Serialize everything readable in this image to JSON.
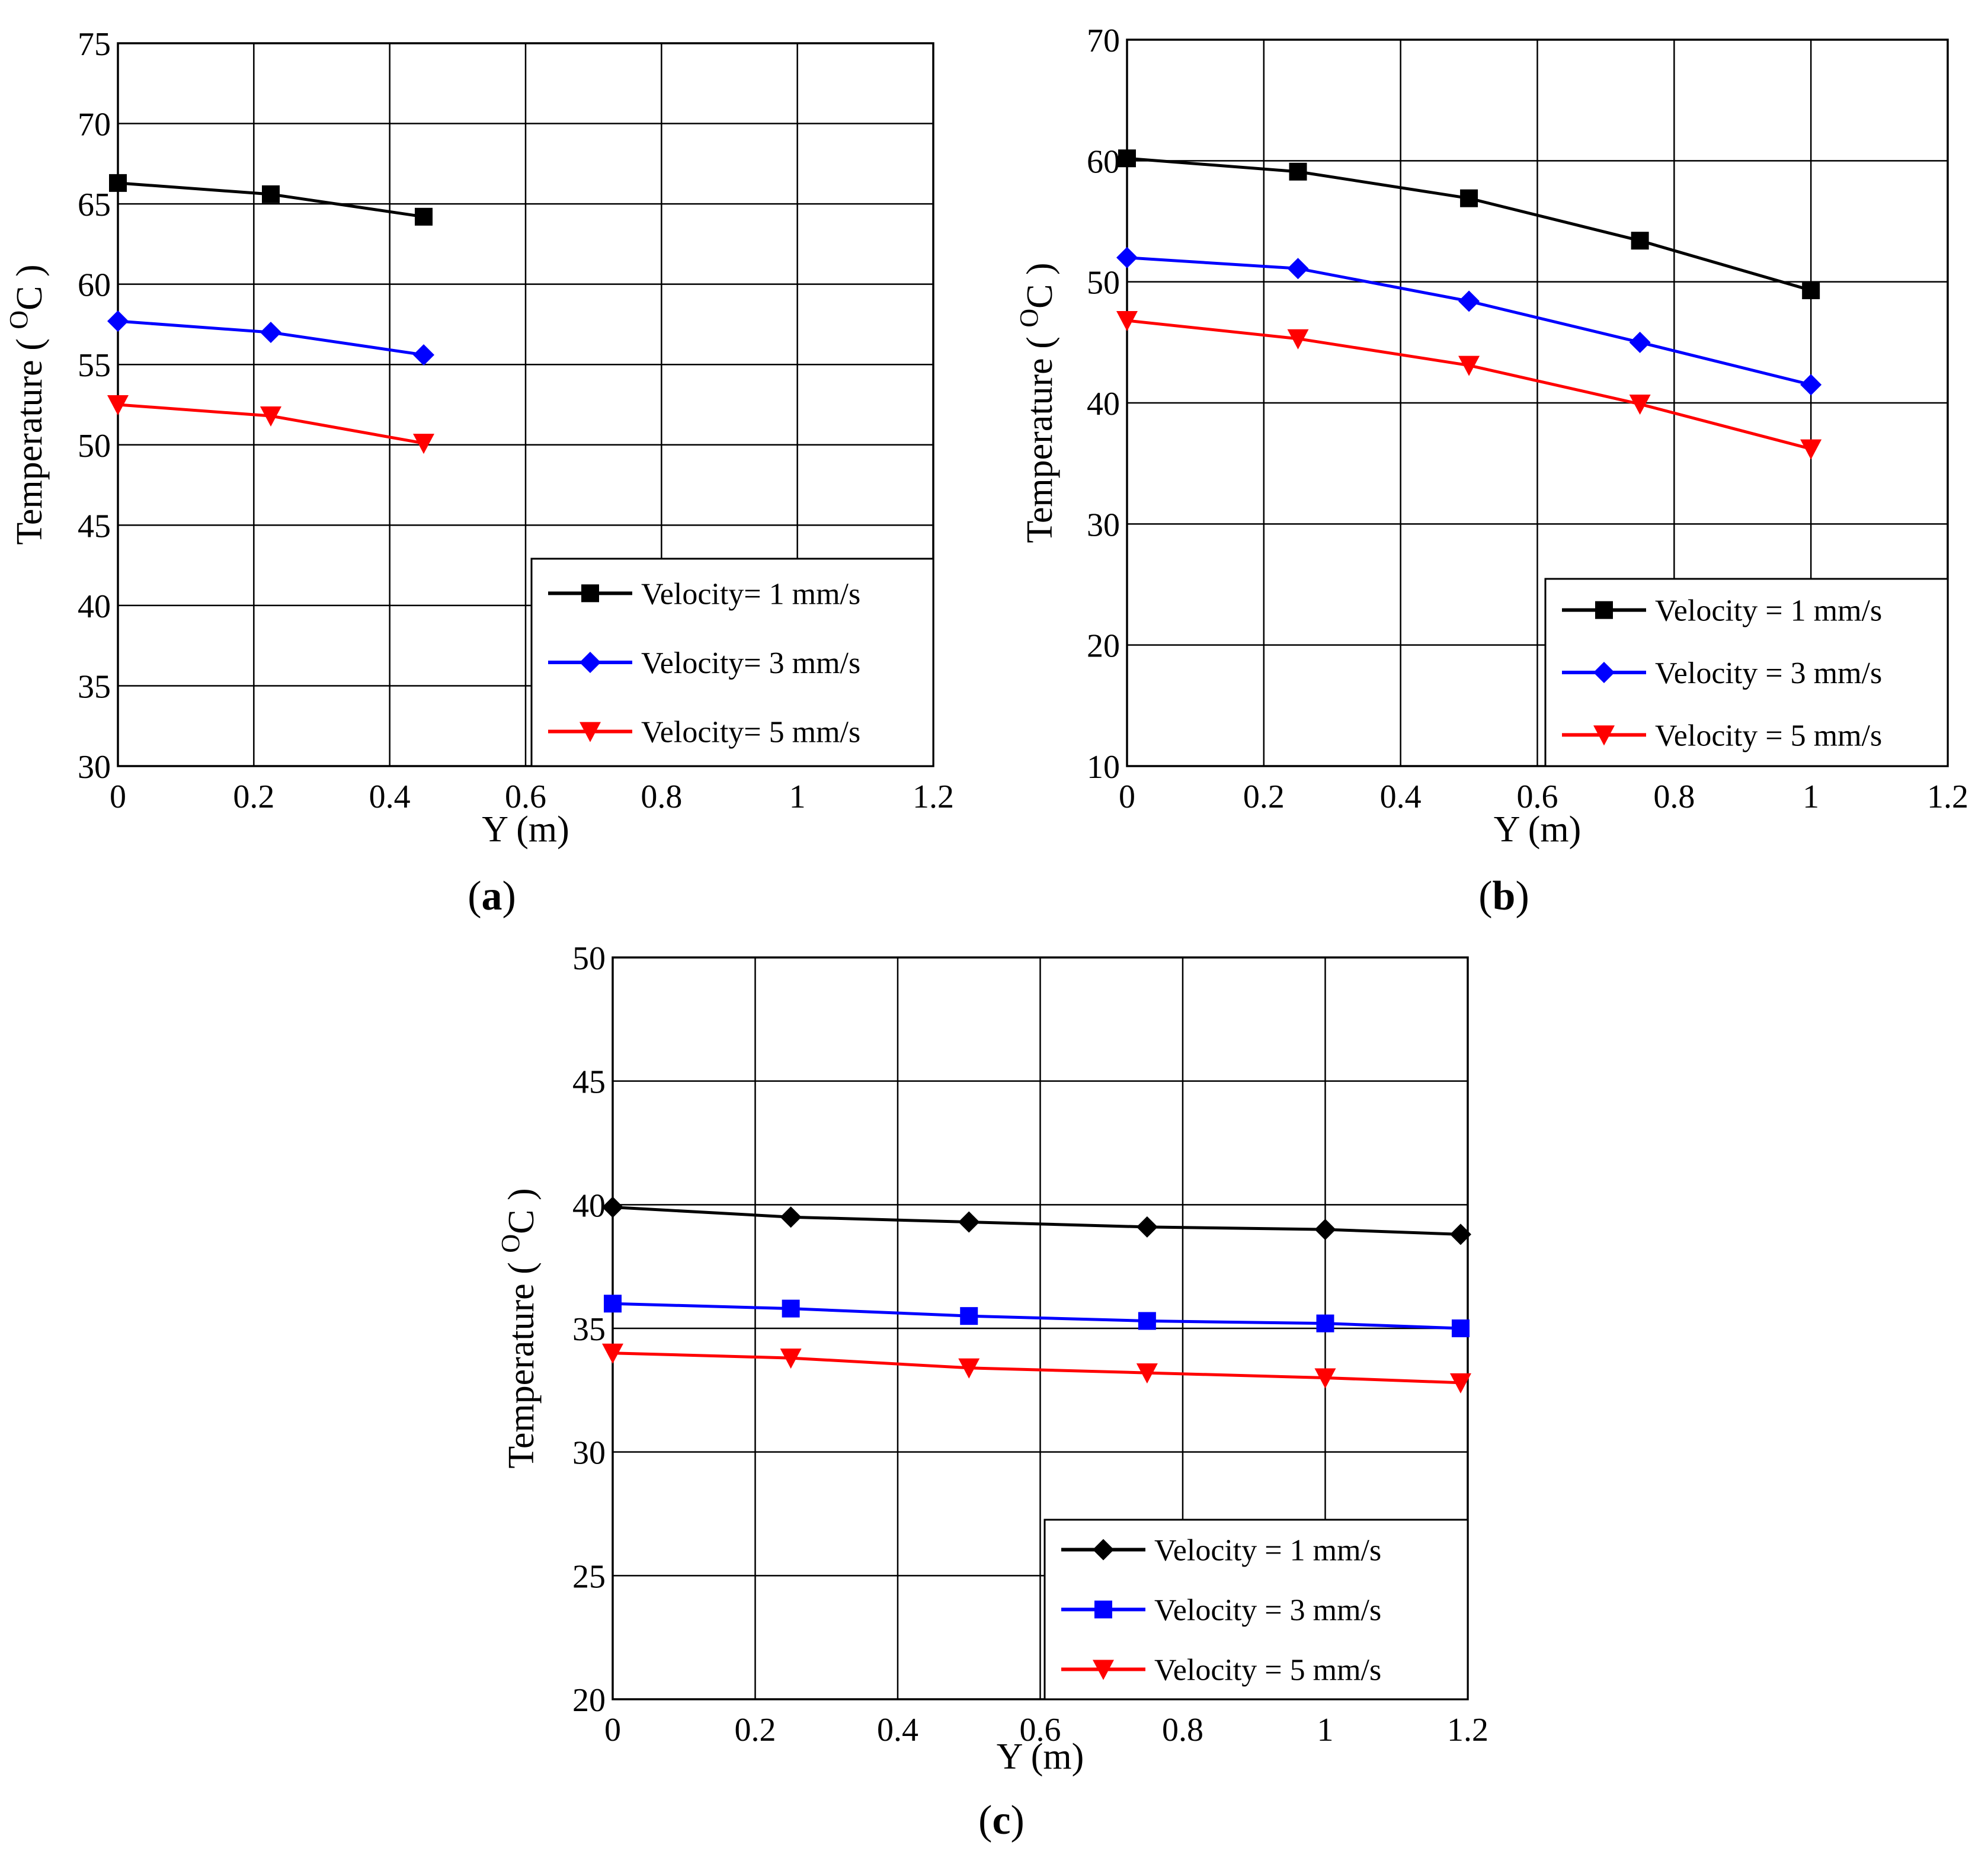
{
  "colors": {
    "series": [
      "#000000",
      "#0000ff",
      "#ff0000"
    ],
    "grid": "#000000",
    "axis": "#000000",
    "background": "#ffffff"
  },
  "chart_data": [
    {
      "type": "line",
      "panel_label": "a",
      "title": "",
      "xlabel": "Y (m)",
      "ylabel": "Temperature ( °C )",
      "ylabel_parts": {
        "main": "Temperature (",
        "degree": "O",
        "unit": "C",
        "close": ")"
      },
      "xlim": [
        0,
        1.2
      ],
      "ylim": [
        30,
        75
      ],
      "xticks": [
        0,
        0.2,
        0.4,
        0.6,
        0.8,
        1,
        1.2
      ],
      "xtick_labels": [
        "0",
        "0.2",
        "0.4",
        "0.6",
        "0.8",
        "1",
        "1.2"
      ],
      "yticks": [
        30,
        35,
        40,
        45,
        50,
        55,
        60,
        65,
        70,
        75
      ],
      "ytick_labels": [
        "30",
        "35",
        "40",
        "45",
        "50",
        "55",
        "60",
        "65",
        "70",
        "75"
      ],
      "grid": true,
      "legend_position": "bottom-right",
      "series": [
        {
          "name": "Velocity= 1 mm/s",
          "color": "#000000",
          "marker": "square",
          "x": [
            0,
            0.225,
            0.45
          ],
          "y": [
            66.3,
            65.6,
            64.2
          ]
        },
        {
          "name": "Velocity= 3 mm/s",
          "color": "#0000ff",
          "marker": "diamond",
          "x": [
            0,
            0.225,
            0.45
          ],
          "y": [
            57.7,
            57.0,
            55.6
          ]
        },
        {
          "name": "Velocity= 5 mm/s",
          "color": "#ff0000",
          "marker": "triangle-down",
          "x": [
            0,
            0.225,
            0.45
          ],
          "y": [
            52.5,
            51.8,
            50.1
          ]
        }
      ]
    },
    {
      "type": "line",
      "panel_label": "b",
      "title": "",
      "xlabel": "Y (m)",
      "ylabel": "Temperature ( °C )",
      "ylabel_parts": {
        "main": "Temperature (",
        "degree": "O",
        "unit": "C",
        "close": ")"
      },
      "xlim": [
        0,
        1.2
      ],
      "ylim": [
        10,
        70
      ],
      "xticks": [
        0,
        0.2,
        0.4,
        0.6,
        0.8,
        1,
        1.2
      ],
      "xtick_labels": [
        "0",
        "0.2",
        "0.4",
        "0.6",
        "0.8",
        "1",
        "1.2"
      ],
      "yticks": [
        10,
        20,
        30,
        40,
        50,
        60,
        70
      ],
      "ytick_labels": [
        "10",
        "20",
        "30",
        "40",
        "50",
        "60",
        "70"
      ],
      "grid": true,
      "legend_position": "bottom-right",
      "series": [
        {
          "name": "Velocity = 1 mm/s",
          "color": "#000000",
          "marker": "square",
          "x": [
            0,
            0.25,
            0.5,
            0.75,
            1.0
          ],
          "y": [
            60.2,
            59.1,
            56.9,
            53.4,
            49.3
          ]
        },
        {
          "name": "Velocity = 3 mm/s",
          "color": "#0000ff",
          "marker": "diamond",
          "x": [
            0,
            0.25,
            0.5,
            0.75,
            1.0
          ],
          "y": [
            52.0,
            51.1,
            48.4,
            45.0,
            41.5
          ]
        },
        {
          "name": "Velocity = 5 mm/s",
          "color": "#ff0000",
          "marker": "triangle-down",
          "x": [
            0,
            0.25,
            0.5,
            0.75,
            1.0
          ],
          "y": [
            46.8,
            45.3,
            43.1,
            39.9,
            36.2
          ]
        }
      ]
    },
    {
      "type": "line",
      "panel_label": "c",
      "title": "",
      "xlabel": "Y (m)",
      "ylabel": "Temperature ( °C )",
      "ylabel_parts": {
        "main": "Temperature (",
        "degree": "O",
        "unit": "C",
        "close": ")"
      },
      "xlim": [
        0,
        1.2
      ],
      "ylim": [
        20,
        50
      ],
      "xticks": [
        0,
        0.2,
        0.4,
        0.6,
        0.8,
        1,
        1.2
      ],
      "xtick_labels": [
        "0",
        "0.2",
        "0.4",
        "0.6",
        "0.8",
        "1",
        "1.2"
      ],
      "yticks": [
        20,
        25,
        30,
        35,
        40,
        45,
        50
      ],
      "ytick_labels": [
        "20",
        "25",
        "30",
        "35",
        "40",
        "45",
        "50"
      ],
      "grid": true,
      "legend_position": "bottom-right",
      "series": [
        {
          "name": "Velocity = 1 mm/s",
          "color": "#000000",
          "marker": "diamond",
          "x": [
            0,
            0.25,
            0.5,
            0.75,
            1.0,
            1.19
          ],
          "y": [
            39.9,
            39.5,
            39.3,
            39.1,
            39.0,
            38.8
          ]
        },
        {
          "name": "Velocity = 3 mm/s",
          "color": "#0000ff",
          "marker": "square",
          "x": [
            0,
            0.25,
            0.5,
            0.75,
            1.0,
            1.19
          ],
          "y": [
            36.0,
            35.8,
            35.5,
            35.3,
            35.2,
            35.0
          ]
        },
        {
          "name": "Velocity = 5 mm/s",
          "color": "#ff0000",
          "marker": "triangle-down",
          "x": [
            0,
            0.25,
            0.5,
            0.75,
            1.0,
            1.19
          ],
          "y": [
            34.0,
            33.8,
            33.4,
            33.2,
            33.0,
            32.8
          ]
        }
      ]
    }
  ]
}
